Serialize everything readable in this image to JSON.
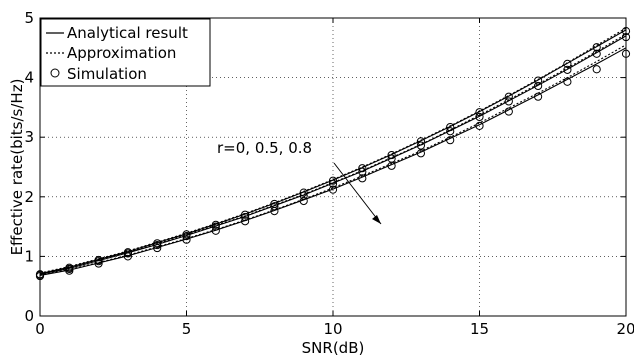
{
  "chart_data": {
    "type": "line",
    "xlabel": "SNR(dB)",
    "ylabel": "Effective rate(bits/s/Hz)",
    "xlim": [
      0,
      20
    ],
    "ylim": [
      0,
      5
    ],
    "xticks": [
      0,
      5,
      10,
      15,
      20
    ],
    "yticks": [
      0,
      1,
      2,
      3,
      4,
      5
    ],
    "xtick_labels": [
      "0",
      "5",
      "10",
      "15",
      "20"
    ],
    "ytick_labels": [
      "0",
      "1",
      "2",
      "3",
      "4",
      "5"
    ],
    "grid": true,
    "legend_position": "top-left",
    "legend": [
      {
        "label": "Analytical result",
        "style": "solid"
      },
      {
        "label": "Approximation",
        "style": "dotted"
      },
      {
        "label": "Simulation",
        "style": "circle"
      }
    ],
    "annotation": {
      "text": "r=0, 0.5, 0.8",
      "arrow": "from label toward decreasing curves",
      "data_x": 10.5,
      "data_y": 2.6
    },
    "x": [
      0,
      1,
      2,
      3,
      4,
      5,
      6,
      7,
      8,
      9,
      10,
      11,
      12,
      13,
      14,
      15,
      16,
      17,
      18,
      19,
      20
    ],
    "series": [
      {
        "name": "r=0",
        "analytical": [
          0.71,
          0.82,
          0.95,
          1.08,
          1.23,
          1.38,
          1.54,
          1.71,
          1.89,
          2.08,
          2.28,
          2.49,
          2.71,
          2.94,
          3.18,
          3.43,
          3.69,
          3.96,
          4.24,
          4.52,
          4.8
        ],
        "approximation": [
          0.72,
          0.83,
          0.96,
          1.09,
          1.24,
          1.39,
          1.55,
          1.72,
          1.9,
          2.09,
          2.29,
          2.5,
          2.72,
          2.95,
          3.19,
          3.44,
          3.7,
          3.97,
          4.25,
          4.54,
          4.83
        ],
        "simulation": [
          0.7,
          0.81,
          0.94,
          1.07,
          1.22,
          1.37,
          1.53,
          1.7,
          1.88,
          2.07,
          2.27,
          2.48,
          2.7,
          2.93,
          3.17,
          3.42,
          3.68,
          3.95,
          4.23,
          4.51,
          4.78
        ]
      },
      {
        "name": "r=0.5",
        "analytical": [
          0.7,
          0.8,
          0.93,
          1.06,
          1.2,
          1.35,
          1.51,
          1.67,
          1.85,
          2.03,
          2.23,
          2.43,
          2.65,
          2.87,
          3.11,
          3.35,
          3.61,
          3.87,
          4.14,
          4.42,
          4.7
        ],
        "approximation": [
          0.71,
          0.81,
          0.94,
          1.07,
          1.21,
          1.36,
          1.52,
          1.68,
          1.86,
          2.04,
          2.24,
          2.44,
          2.66,
          2.88,
          3.12,
          3.37,
          3.63,
          3.89,
          4.16,
          4.44,
          4.73
        ],
        "simulation": [
          0.69,
          0.79,
          0.92,
          1.05,
          1.19,
          1.34,
          1.5,
          1.66,
          1.84,
          2.02,
          2.22,
          2.42,
          2.64,
          2.86,
          3.1,
          3.34,
          3.6,
          3.86,
          4.13,
          4.4,
          4.68
        ]
      },
      {
        "name": "r=0.8",
        "analytical": [
          0.68,
          0.77,
          0.89,
          1.01,
          1.15,
          1.29,
          1.44,
          1.6,
          1.77,
          1.95,
          2.13,
          2.33,
          2.54,
          2.75,
          2.98,
          3.21,
          3.46,
          3.71,
          3.97,
          4.23,
          4.5
        ],
        "approximation": [
          0.69,
          0.78,
          0.9,
          1.02,
          1.16,
          1.3,
          1.45,
          1.61,
          1.78,
          1.96,
          2.15,
          2.35,
          2.56,
          2.77,
          3.0,
          3.24,
          3.49,
          3.74,
          4.0,
          4.27,
          4.55
        ],
        "simulation": [
          0.67,
          0.76,
          0.88,
          1.0,
          1.14,
          1.28,
          1.43,
          1.59,
          1.76,
          1.93,
          2.12,
          2.31,
          2.52,
          2.73,
          2.95,
          3.19,
          3.43,
          3.68,
          3.93,
          4.14,
          4.4
        ]
      }
    ]
  }
}
